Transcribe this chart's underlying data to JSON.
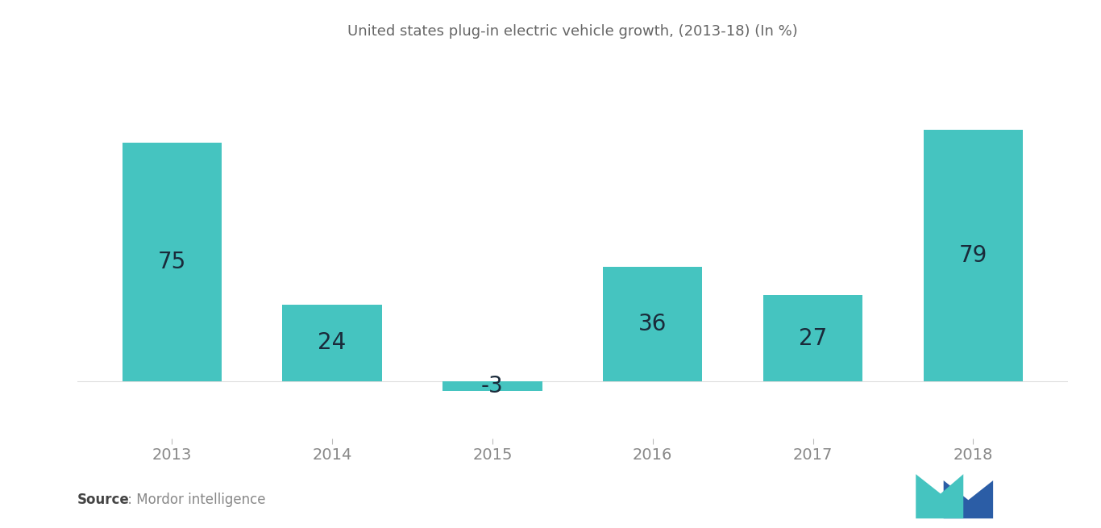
{
  "title": "United states plug-in electric vehicle growth, (2013-18) (In %)",
  "categories": [
    "2013",
    "2014",
    "2015",
    "2016",
    "2017",
    "2018"
  ],
  "values": [
    75,
    24,
    -3,
    36,
    27,
    79
  ],
  "bar_color": "#45C4C0",
  "label_color": "#555555",
  "title_color": "#666666",
  "background_color": "#ffffff",
  "source_bold": "Source",
  "source_text": " : Mordor intelligence",
  "title_fontsize": 13,
  "label_fontsize": 20,
  "tick_fontsize": 14,
  "source_fontsize": 12,
  "ylim": [
    -18,
    100
  ],
  "bar_width": 0.62
}
